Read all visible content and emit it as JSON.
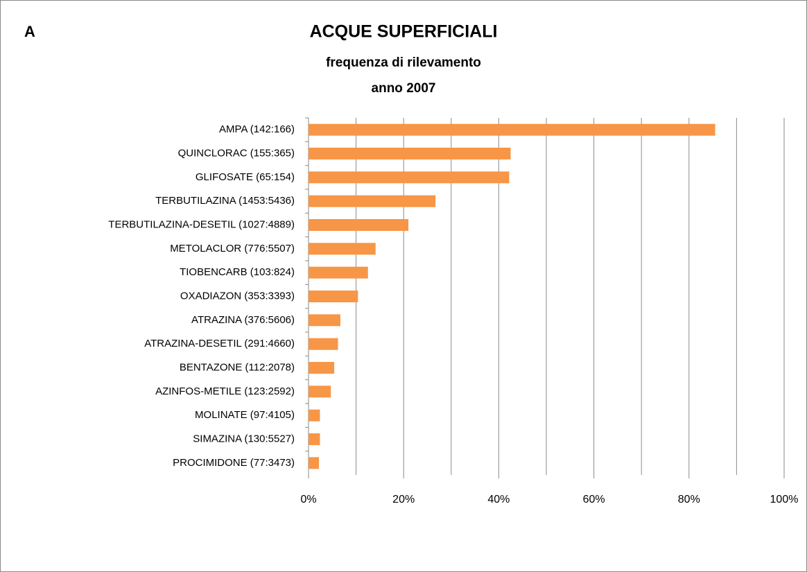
{
  "chart_data": {
    "type": "barh",
    "panel_label": "A",
    "title": "ACQUE SUPERFICIALI",
    "subtitle": [
      "frequenza di rilevamento",
      "anno 2007"
    ],
    "categories": [
      "AMPA (142:166)",
      "QUINCLORAC (155:365)",
      "GLIFOSATE (65:154)",
      "TERBUTILAZINA (1453:5436)",
      "TERBUTILAZINA-DESETIL (1027:4889)",
      "METOLACLOR (776:5507)",
      "TIOBENCARB (103:824)",
      "OXADIAZON (353:3393)",
      "ATRAZINA (376:5606)",
      "ATRAZINA-DESETIL (291:4660)",
      "BENTAZONE (112:2078)",
      "AZINFOS-METILE (123:2592)",
      "MOLINATE (97:4105)",
      "SIMAZINA (130:5527)",
      "PROCIMIDONE (77:3473)"
    ],
    "values": [
      85.5,
      42.5,
      42.2,
      26.7,
      21.0,
      14.1,
      12.5,
      10.4,
      6.7,
      6.2,
      5.4,
      4.7,
      2.4,
      2.4,
      2.2
    ],
    "color": "#f79646",
    "xlim": [
      0,
      100
    ],
    "xticks": [
      {
        "value": 0,
        "label": "0%"
      },
      {
        "value": 20,
        "label": "20%"
      },
      {
        "value": 40,
        "label": "40%"
      },
      {
        "value": 60,
        "label": "60%"
      },
      {
        "value": 80,
        "label": "80%"
      },
      {
        "value": 100,
        "label": "100%"
      }
    ],
    "xgrid": [
      0,
      10,
      20,
      30,
      40,
      50,
      60,
      70,
      80,
      90,
      100
    ],
    "grid": true
  }
}
